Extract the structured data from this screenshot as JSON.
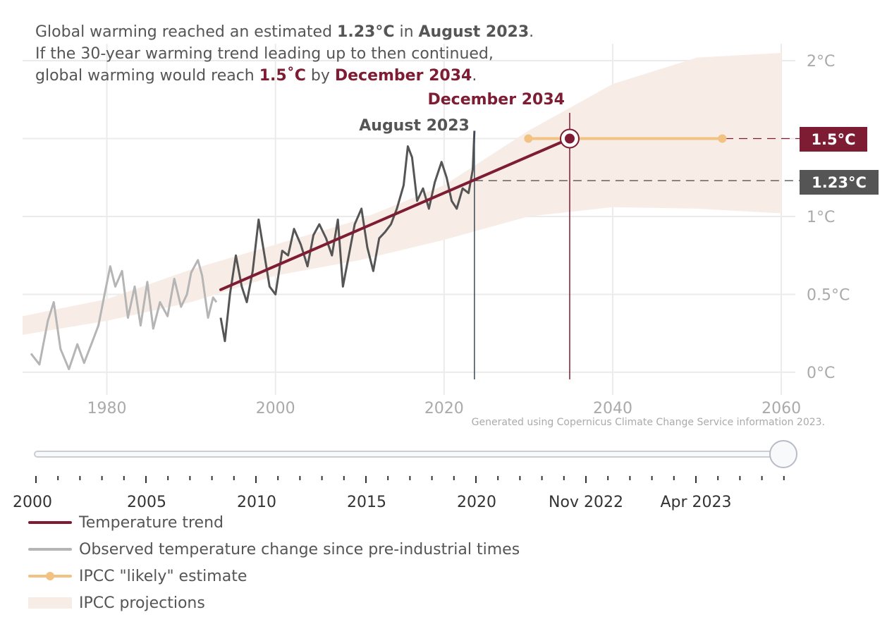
{
  "headline": {
    "line1_a": "Global warming reached an estimated ",
    "line1_value": "1.23°C",
    "line1_b": " in ",
    "line1_date": "August 2023",
    "line1_c": ".",
    "line2": "If the 30-year warming trend leading up to then continued,",
    "line3_a": "global warming would reach ",
    "line3_value": "1.5˚C",
    "line3_b": " by ",
    "line3_date": "December 2034",
    "line3_c": "."
  },
  "colors": {
    "trend": "#7d1c33",
    "observed_early": "#b5b5b5",
    "observed_recent": "#555555",
    "ipcc_likely": "#f2c283",
    "ipcc_band": "#f7ede6",
    "grid": "#ebebeb",
    "axis_text": "#aaaaaa"
  },
  "chart_data": {
    "type": "line",
    "x_range": [
      1970,
      2062
    ],
    "y_range": [
      -0.1,
      2.05
    ],
    "x_ticks": [
      1980,
      2000,
      2020,
      2040,
      2060
    ],
    "x_tick_labels": [
      "1980",
      "2000",
      "2020",
      "2040",
      "2060"
    ],
    "y_ticks": [
      0,
      0.5,
      1,
      1.5,
      2
    ],
    "y_tick_labels": [
      "0°C",
      "0.5°C",
      "1°C",
      "1.5°C",
      "2°C"
    ],
    "grid": true,
    "series": [
      {
        "name": "Observed temperature change since pre-industrial times",
        "segment_1970_1993": [
          [
            1971.0,
            0.12
          ],
          [
            1972.0,
            0.05
          ],
          [
            1973.0,
            0.33
          ],
          [
            1973.7,
            0.45
          ],
          [
            1974.5,
            0.15
          ],
          [
            1975.5,
            0.02
          ],
          [
            1976.5,
            0.18
          ],
          [
            1977.3,
            0.06
          ],
          [
            1978.3,
            0.2
          ],
          [
            1979.0,
            0.3
          ],
          [
            1979.8,
            0.52
          ],
          [
            1980.4,
            0.68
          ],
          [
            1981.0,
            0.55
          ],
          [
            1981.8,
            0.65
          ],
          [
            1982.5,
            0.35
          ],
          [
            1983.3,
            0.55
          ],
          [
            1984.0,
            0.3
          ],
          [
            1984.8,
            0.58
          ],
          [
            1985.5,
            0.28
          ],
          [
            1986.3,
            0.45
          ],
          [
            1987.2,
            0.36
          ],
          [
            1988.0,
            0.6
          ],
          [
            1988.8,
            0.42
          ],
          [
            1989.5,
            0.5
          ],
          [
            1990.0,
            0.64
          ],
          [
            1990.8,
            0.72
          ],
          [
            1991.3,
            0.62
          ],
          [
            1992.0,
            0.35
          ],
          [
            1992.6,
            0.48
          ],
          [
            1993.0,
            0.45
          ]
        ],
        "segment_1993_2023": [
          [
            1993.5,
            0.35
          ],
          [
            1994.0,
            0.2
          ],
          [
            1994.6,
            0.5
          ],
          [
            1995.3,
            0.75
          ],
          [
            1996.0,
            0.55
          ],
          [
            1996.6,
            0.45
          ],
          [
            1997.3,
            0.65
          ],
          [
            1998.0,
            0.98
          ],
          [
            1998.7,
            0.75
          ],
          [
            1999.3,
            0.55
          ],
          [
            2000.0,
            0.5
          ],
          [
            2000.8,
            0.78
          ],
          [
            2001.5,
            0.75
          ],
          [
            2002.2,
            0.92
          ],
          [
            2003.0,
            0.82
          ],
          [
            2003.8,
            0.68
          ],
          [
            2004.5,
            0.88
          ],
          [
            2005.2,
            0.95
          ],
          [
            2006.0,
            0.86
          ],
          [
            2006.7,
            0.75
          ],
          [
            2007.4,
            0.98
          ],
          [
            2008.0,
            0.55
          ],
          [
            2008.7,
            0.75
          ],
          [
            2009.4,
            0.95
          ],
          [
            2010.2,
            1.05
          ],
          [
            2010.9,
            0.8
          ],
          [
            2011.6,
            0.65
          ],
          [
            2012.3,
            0.86
          ],
          [
            2013.0,
            0.9
          ],
          [
            2013.7,
            0.95
          ],
          [
            2014.4,
            1.05
          ],
          [
            2015.2,
            1.2
          ],
          [
            2015.7,
            1.45
          ],
          [
            2016.2,
            1.38
          ],
          [
            2016.8,
            1.1
          ],
          [
            2017.5,
            1.18
          ],
          [
            2018.2,
            1.05
          ],
          [
            2018.9,
            1.22
          ],
          [
            2019.7,
            1.35
          ],
          [
            2020.3,
            1.25
          ],
          [
            2020.9,
            1.1
          ],
          [
            2021.5,
            1.05
          ],
          [
            2022.2,
            1.18
          ],
          [
            2022.9,
            1.15
          ],
          [
            2023.4,
            1.3
          ],
          [
            2023.6,
            1.55
          ]
        ]
      },
      {
        "name": "Temperature trend",
        "points": [
          [
            1993.5,
            0.53
          ],
          [
            2034.9,
            1.5
          ]
        ]
      },
      {
        "name": "IPCC \"likely\" estimate",
        "points": [
          [
            2030,
            1.5
          ],
          [
            2053,
            1.5
          ]
        ]
      },
      {
        "name": "IPCC projections",
        "lower": [
          [
            1970,
            0.24
          ],
          [
            1980,
            0.33
          ],
          [
            1990,
            0.45
          ],
          [
            2000,
            0.62
          ],
          [
            2010,
            0.72
          ],
          [
            2020,
            0.85
          ],
          [
            2030,
            1.0
          ],
          [
            2040,
            1.06
          ],
          [
            2050,
            1.05
          ],
          [
            2060,
            1.02
          ]
        ],
        "upper": [
          [
            1970,
            0.36
          ],
          [
            1980,
            0.47
          ],
          [
            1990,
            0.66
          ],
          [
            2000,
            0.82
          ],
          [
            2010,
            0.98
          ],
          [
            2020,
            1.2
          ],
          [
            2030,
            1.55
          ],
          [
            2040,
            1.85
          ],
          [
            2050,
            2.02
          ],
          [
            2060,
            2.05
          ]
        ]
      }
    ],
    "annotations": {
      "august_label": "August 2023",
      "august_x": 2023.6,
      "december_label": "December 2034",
      "december_x": 2034.9,
      "value_label_150": "1.5°C",
      "value_label_123": "1.23°C",
      "value_123": 1.23,
      "value_150": 1.5
    },
    "source_note": "Generated using Copernicus Climate Change Service information 2023."
  },
  "slider": {
    "tick_labels": [
      "2000",
      "2005",
      "2010",
      "2015",
      "2020",
      "Nov 2022",
      "Apr 2023"
    ],
    "position_fraction": 1.0
  },
  "legend": {
    "items": [
      {
        "label": "Temperature trend",
        "kind": "line",
        "color": "#7d1c33"
      },
      {
        "label": "Observed temperature change since pre-industrial times",
        "kind": "line",
        "color": "#b5b5b5"
      },
      {
        "label": "IPCC \"likely\" estimate",
        "kind": "line-dot",
        "color": "#f2c283"
      },
      {
        "label": "IPCC projections",
        "kind": "band",
        "color": "#f7ede6"
      }
    ]
  }
}
